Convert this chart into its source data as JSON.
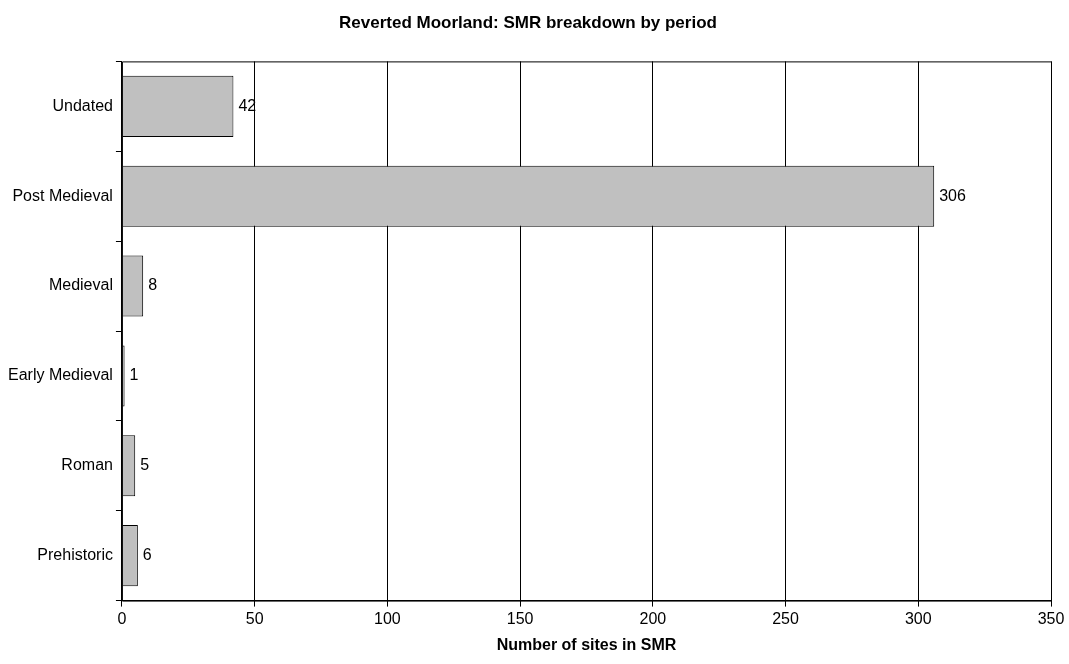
{
  "chart_data": {
    "type": "bar",
    "orientation": "horizontal",
    "title": "Reverted Moorland: SMR breakdown by period",
    "xlabel": "Number of sites in SMR",
    "categories": [
      "Undated",
      "Post Medieval",
      "Medieval",
      "Early Medieval",
      "Roman",
      "Prehistoric"
    ],
    "values": [
      42,
      306,
      8,
      1,
      5,
      6
    ],
    "color": "#c0c0c0",
    "xlim": [
      0,
      350
    ],
    "xticks": [
      0,
      50,
      100,
      150,
      200,
      250,
      300,
      350
    ],
    "grid": "x",
    "data_labels": true,
    "legend": false
  }
}
